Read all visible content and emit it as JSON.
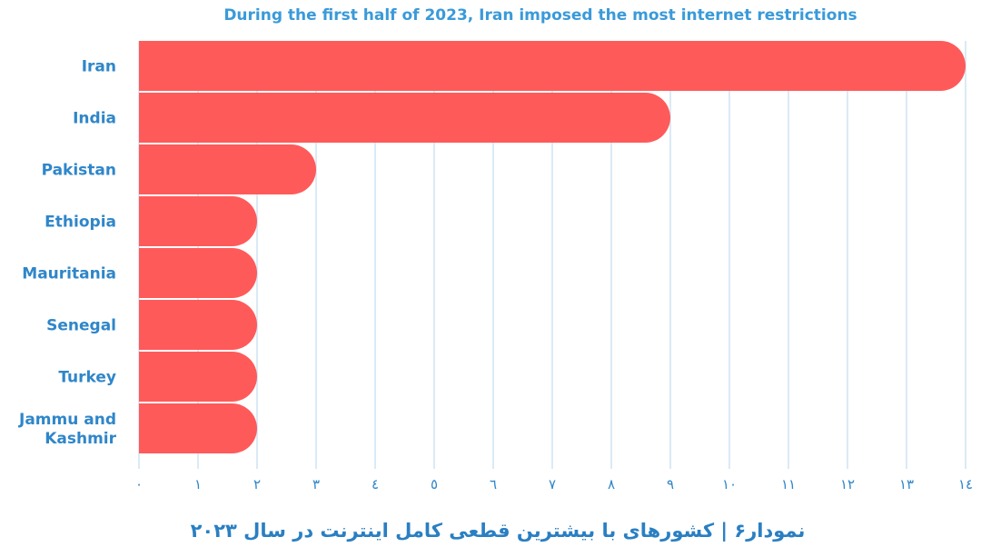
{
  "chart_data": {
    "type": "bar",
    "orientation": "horizontal",
    "title": "During the first half of 2023, Iran imposed the most internet restrictions",
    "categories": [
      "Iran",
      "India",
      "Pakistan",
      "Ethiopia",
      "Mauritania",
      "Senegal",
      "Turkey",
      "Jammu and Kashmir"
    ],
    "category_lines": [
      [
        "Iran"
      ],
      [
        "India"
      ],
      [
        "Pakistan"
      ],
      [
        "Ethiopia"
      ],
      [
        "Mauritania"
      ],
      [
        "Senegal"
      ],
      [
        "Turkey"
      ],
      [
        "Jammu and",
        "Kashmir"
      ]
    ],
    "values": [
      14,
      9,
      3,
      2,
      2,
      2,
      2,
      2
    ],
    "xlim": [
      0,
      14
    ],
    "x_tick_labels": [
      "٠",
      "١",
      "٢",
      "٣",
      "٤",
      "٥",
      "٦",
      "٧",
      "٨",
      "٩",
      "١٠",
      "١١",
      "١٢",
      "١٣",
      "١٤"
    ],
    "grid": "vertical",
    "bar_color": "#ff5a5a",
    "grid_color": "#cfe3f4",
    "text_color": "#2f86c9"
  },
  "caption": "نمودار۶ | کشورهای با بیشترین قطعی کامل اینترنت در سال ۲۰۲۳"
}
